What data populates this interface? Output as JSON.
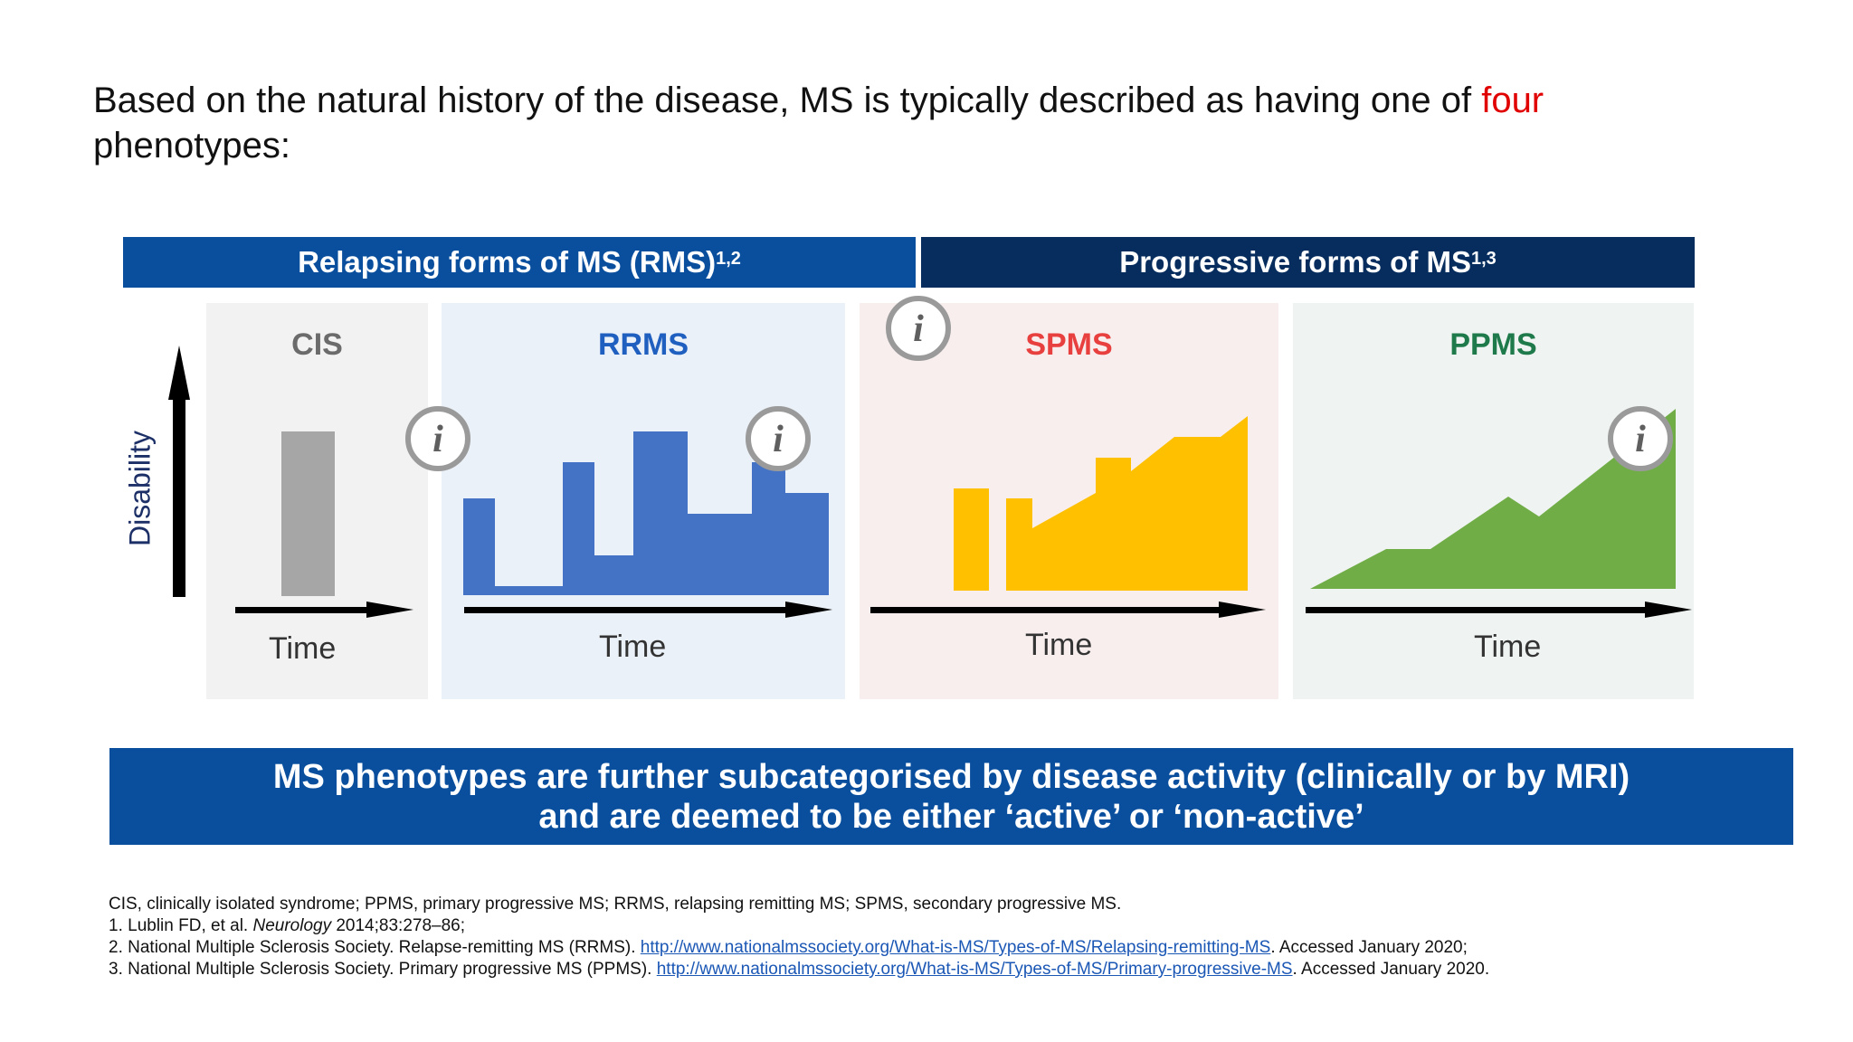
{
  "headline": {
    "text_before": "Based on the natural history of the disease, MS is typically described as having one of ",
    "highlight": "four",
    "text_after": " phenotypes:"
  },
  "headers": {
    "relapsing": {
      "label": "Relapsing forms of MS (RMS)",
      "sup": "1,2"
    },
    "progressive": {
      "label": "Progressive forms of MS",
      "sup": "1,3"
    }
  },
  "y_axis_label": "Disability",
  "panels": [
    {
      "key": "cis",
      "title": "CIS",
      "title_color": "#6b6b6b",
      "fill_color": "#a6a6a6",
      "x_label": "Time"
    },
    {
      "key": "rrms",
      "title": "RRMS",
      "title_color": "#1f5fbf",
      "fill_color": "#4472c4",
      "x_label": "Time"
    },
    {
      "key": "spms",
      "title": "SPMS",
      "title_color": "#e8403e",
      "fill_color": "#ffc000",
      "x_label": "Time"
    },
    {
      "key": "ppms",
      "title": "PPMS",
      "title_color": "#1e7a4a",
      "fill_color": "#70ad47",
      "x_label": "Time"
    }
  ],
  "info_icon_glyph": "i",
  "banner": {
    "line1": "MS phenotypes are further subcategorised by disease activity (clinically or by MRI)",
    "line2": "and are deemed to be either ‘active’ or ‘non-active’"
  },
  "footnotes": {
    "abbrev": "CIS, clinically isolated syndrome; PPMS, primary progressive MS; RRMS, relapsing remitting MS; SPMS, secondary progressive MS.",
    "ref1_prefix": "1. Lublin FD, et al. ",
    "ref1_journal": "Neurology",
    "ref1_suffix": " 2014;83:278–86;",
    "ref2_prefix": "2. National Multiple Sclerosis Society. Relapse-remitting MS (RRMS). ",
    "ref2_link": "http://www.nationalmssociety.org/What-is-MS/Types-of-MS/Relapsing-remitting-MS",
    "ref2_suffix": ". Accessed January 2020;",
    "ref3_prefix": "3. National Multiple Sclerosis Society. Primary progressive MS (PPMS). ",
    "ref3_link": "http://www.nationalmssociety.org/What-is-MS/Types-of-MS/Primary-progressive-MS",
    "ref3_suffix": ". Accessed January 2020."
  },
  "colors": {
    "rms_header": "#0a4f9e",
    "progressive_header": "#062d5e",
    "banner": "#0a4f9e",
    "highlight": "#e00000",
    "info_ring": "#9a9a9a",
    "info_glyph": "#5f5f5f"
  }
}
